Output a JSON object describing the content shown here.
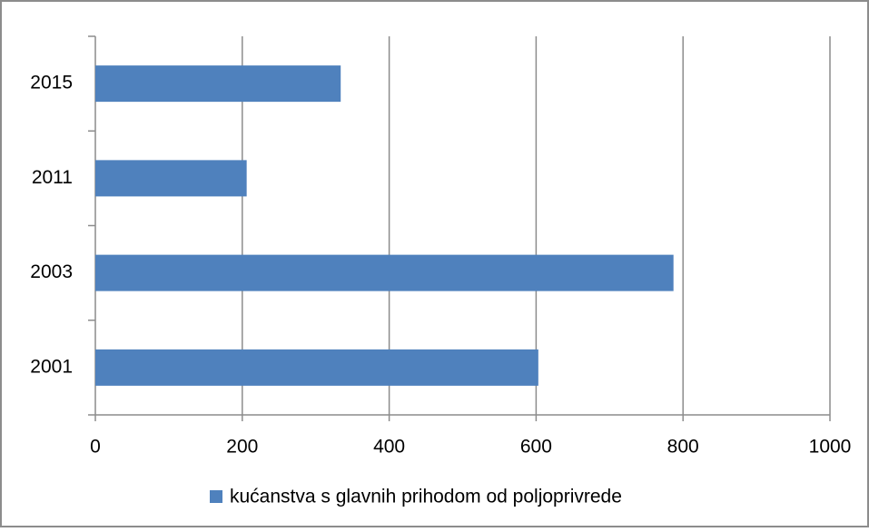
{
  "chart_data": {
    "type": "bar",
    "orientation": "horizontal",
    "categories": [
      "2001",
      "2003",
      "2011",
      "2015"
    ],
    "series": [
      {
        "name": "kućanstva s glavnih prihodom od poljoprivrede",
        "color": "#4f81bd",
        "values": [
          603,
          787,
          206,
          334
        ]
      }
    ],
    "xlim": [
      0,
      1000
    ],
    "xticks": [
      0,
      200,
      400,
      600,
      800,
      1000
    ],
    "grid": true,
    "legend": "bottom"
  }
}
